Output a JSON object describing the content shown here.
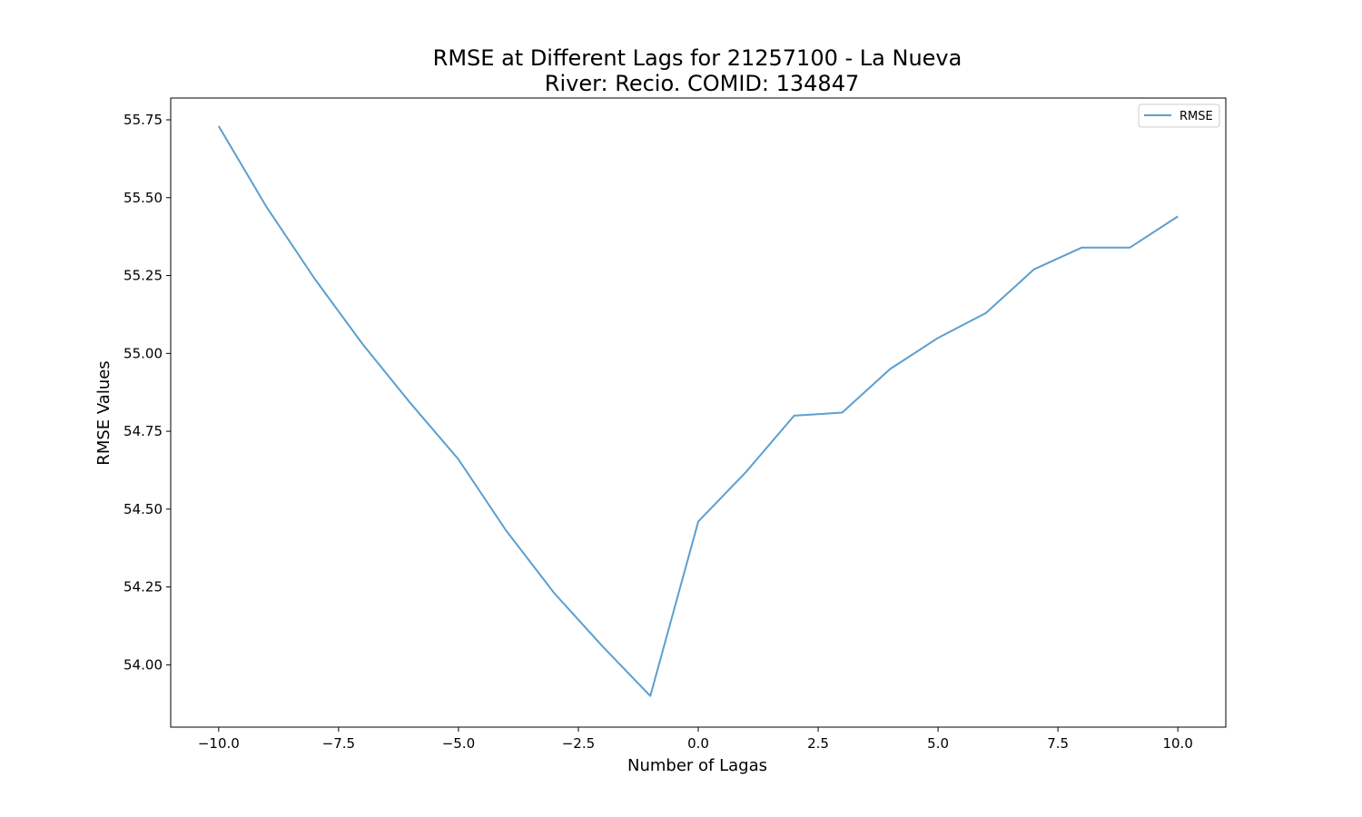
{
  "chart_data": {
    "type": "line",
    "title": "RMSE at Different Lags for 21257100 - La Nueva",
    "subtitle": "River: Recio. COMID: 134847",
    "xlabel": "Number of Lagas",
    "ylabel": "RMSE Values",
    "xlim": [
      -11,
      11
    ],
    "ylim": [
      53.8,
      55.82
    ],
    "x_ticks": [
      -10.0,
      -7.5,
      -5.0,
      -2.5,
      0.0,
      2.5,
      5.0,
      7.5,
      10.0
    ],
    "x_tick_labels": [
      "−10.0",
      "−7.5",
      "−5.0",
      "−2.5",
      "0.0",
      "2.5",
      "5.0",
      "7.5",
      "10.0"
    ],
    "y_ticks": [
      54.0,
      54.25,
      54.5,
      54.75,
      55.0,
      55.25,
      55.5,
      55.75
    ],
    "y_tick_labels": [
      "54.00",
      "54.25",
      "54.50",
      "54.75",
      "55.00",
      "55.25",
      "55.50",
      "55.75"
    ],
    "grid": false,
    "legend_position": "top-right",
    "series": [
      {
        "name": "RMSE",
        "color": "#5b9fd0",
        "x": [
          -10,
          -9,
          -8,
          -7,
          -6,
          -5,
          -4,
          -3,
          -2,
          -1,
          0,
          1,
          2,
          3,
          4,
          5,
          6,
          7,
          8,
          9,
          10
        ],
        "y": [
          55.73,
          55.47,
          55.24,
          55.03,
          54.84,
          54.66,
          54.43,
          54.23,
          54.06,
          53.9,
          54.46,
          54.62,
          54.8,
          54.81,
          54.95,
          55.05,
          55.13,
          55.27,
          55.34,
          55.34,
          55.44
        ]
      }
    ]
  }
}
